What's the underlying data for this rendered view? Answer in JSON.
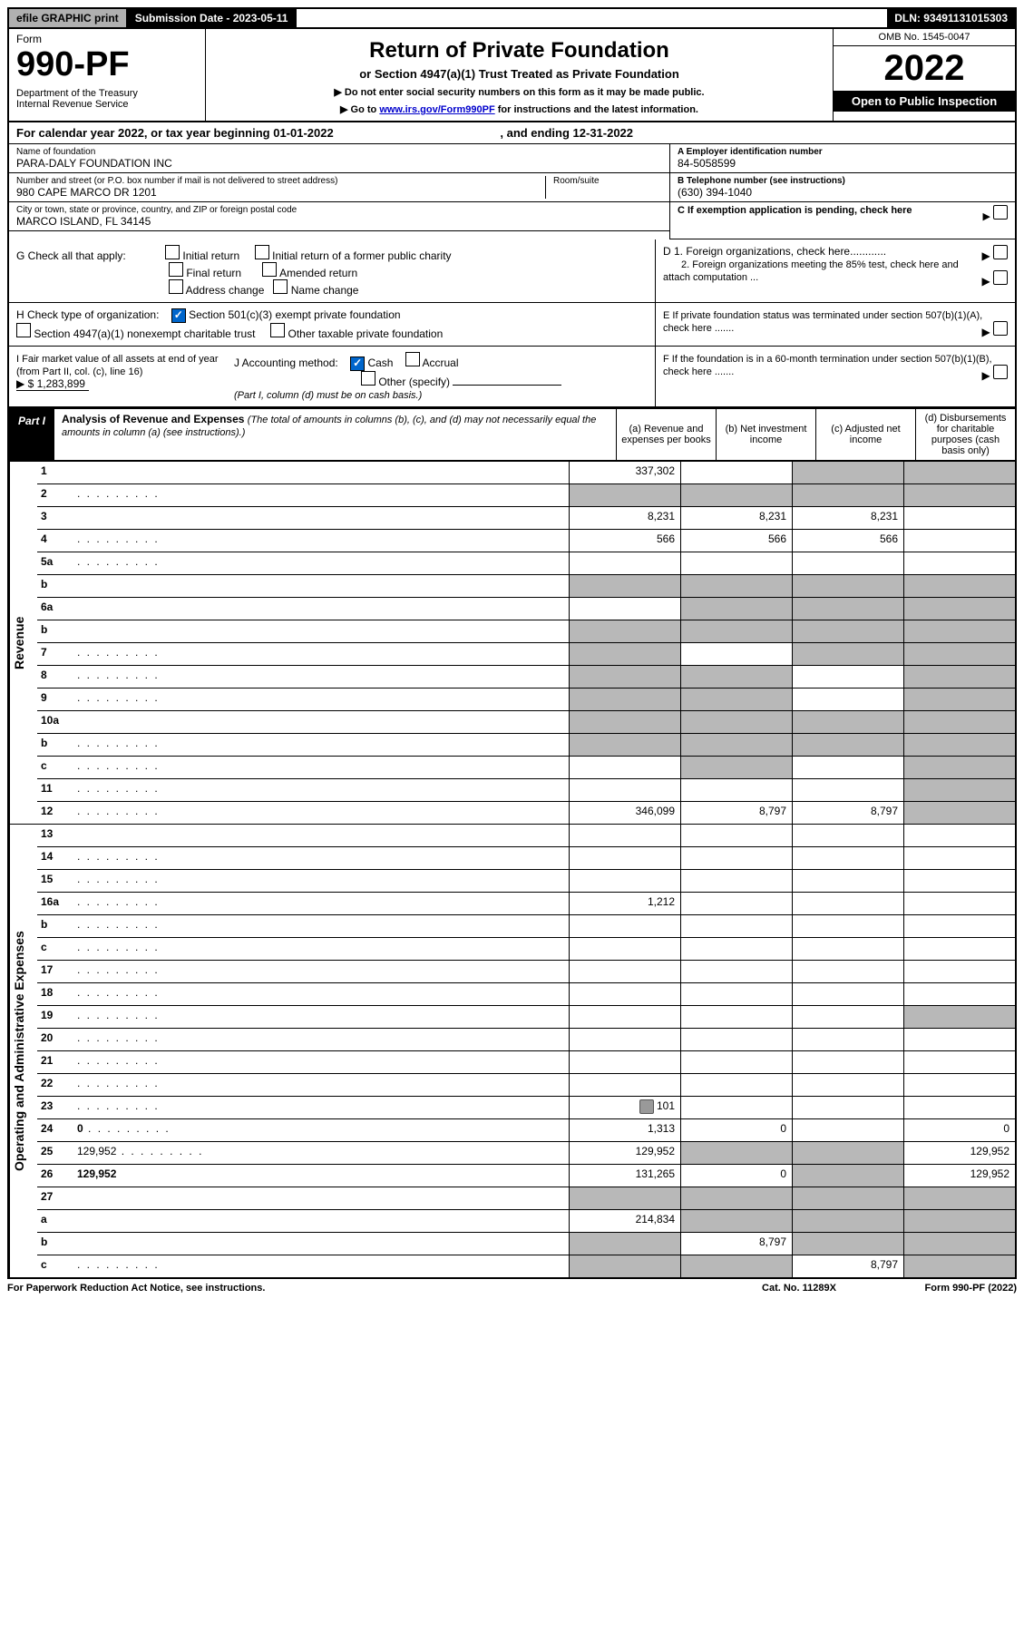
{
  "top": {
    "efile": "efile GRAPHIC print",
    "sub_date": "Submission Date - 2023-05-11",
    "dln": "DLN: 93491131015303"
  },
  "header": {
    "form_label": "Form",
    "form_num": "990-PF",
    "dept": "Department of the Treasury\nInternal Revenue Service",
    "title": "Return of Private Foundation",
    "subtitle": "or Section 4947(a)(1) Trust Treated as Private Foundation",
    "note1": "▶ Do not enter social security numbers on this form as it may be made public.",
    "note2_pre": "▶ Go to ",
    "note2_link": "www.irs.gov/Form990PF",
    "note2_post": " for instructions and the latest information.",
    "omb": "OMB No. 1545-0047",
    "year": "2022",
    "open": "Open to Public Inspection"
  },
  "cal": {
    "text": "For calendar year 2022, or tax year beginning 01-01-2022",
    "end": ", and ending 12-31-2022"
  },
  "info": {
    "name_lbl": "Name of foundation",
    "name": "PARA-DALY FOUNDATION INC",
    "addr_lbl": "Number and street (or P.O. box number if mail is not delivered to street address)",
    "addr": "980 CAPE MARCO DR 1201",
    "room_lbl": "Room/suite",
    "city_lbl": "City or town, state or province, country, and ZIP or foreign postal code",
    "city": "MARCO ISLAND, FL  34145",
    "ein_lbl": "A Employer identification number",
    "ein": "84-5058599",
    "tel_lbl": "B Telephone number (see instructions)",
    "tel": "(630) 394-1040",
    "c_lbl": "C If exemption application is pending, check here",
    "d1_lbl": "D 1. Foreign organizations, check here............",
    "d2_lbl": "2. Foreign organizations meeting the 85% test, check here and attach computation ...",
    "e_lbl": "E  If private foundation status was terminated under section 507(b)(1)(A), check here .......",
    "f_lbl": "F  If the foundation is in a 60-month termination under section 507(b)(1)(B), check here .......",
    "g_lbl": "G Check all that apply:",
    "g_opts": [
      "Initial return",
      "Initial return of a former public charity",
      "Final return",
      "Amended return",
      "Address change",
      "Name change"
    ],
    "h_lbl": "H Check type of organization:",
    "h_opts": [
      "Section 501(c)(3) exempt private foundation",
      "Section 4947(a)(1) nonexempt charitable trust",
      "Other taxable private foundation"
    ],
    "i_lbl": "I Fair market value of all assets at end of year (from Part II, col. (c), line 16)",
    "i_val": "▶ $  1,283,899",
    "j_lbl": "J Accounting method:",
    "j_opts": [
      "Cash",
      "Accrual",
      "Other (specify)"
    ],
    "j_note": "(Part I, column (d) must be on cash basis.)"
  },
  "part": {
    "label": "Part I",
    "title": "Analysis of Revenue and Expenses",
    "title_note": " (The total of amounts in columns (b), (c), and (d) may not necessarily equal the amounts in column (a) (see instructions).)",
    "col_a": "(a)  Revenue and expenses per books",
    "col_b": "(b)  Net investment income",
    "col_c": "(c)  Adjusted net income",
    "col_d": "(d)  Disbursements for charitable purposes (cash basis only)"
  },
  "sections": {
    "revenue": "Revenue",
    "expenses": "Operating and Administrative Expenses"
  },
  "rows": [
    {
      "n": "1",
      "d": "",
      "a": "337,302",
      "b": "",
      "c": "",
      "bs": "",
      "cs": "shade",
      "ds": "shade"
    },
    {
      "n": "2",
      "d": "",
      "a": "",
      "b": "",
      "c": "",
      "as": "shade",
      "bs": "shade",
      "cs": "shade",
      "ds": "shade",
      "dots": true
    },
    {
      "n": "3",
      "d": "",
      "a": "8,231",
      "b": "8,231",
      "c": "8,231"
    },
    {
      "n": "4",
      "d": "",
      "a": "566",
      "b": "566",
      "c": "566",
      "dots": true
    },
    {
      "n": "5a",
      "d": "",
      "a": "",
      "b": "",
      "c": "",
      "dots": true
    },
    {
      "n": "b",
      "d": "",
      "a": "",
      "b": "",
      "c": "",
      "as": "shade",
      "bs": "shade",
      "cs": "shade",
      "ds": "shade"
    },
    {
      "n": "6a",
      "d": "",
      "a": "",
      "b": "",
      "c": "",
      "bs": "shade",
      "cs": "shade",
      "ds": "shade"
    },
    {
      "n": "b",
      "d": "",
      "a": "",
      "b": "",
      "c": "",
      "as": "shade",
      "bs": "shade",
      "cs": "shade",
      "ds": "shade"
    },
    {
      "n": "7",
      "d": "",
      "a": "",
      "b": "",
      "c": "",
      "as": "shade",
      "cs": "shade",
      "ds": "shade",
      "dots": true
    },
    {
      "n": "8",
      "d": "",
      "a": "",
      "b": "",
      "c": "",
      "as": "shade",
      "bs": "shade",
      "ds": "shade",
      "dots": true
    },
    {
      "n": "9",
      "d": "",
      "a": "",
      "b": "",
      "c": "",
      "as": "shade",
      "bs": "shade",
      "ds": "shade",
      "dots": true
    },
    {
      "n": "10a",
      "d": "",
      "a": "",
      "b": "",
      "c": "",
      "as": "shade",
      "bs": "shade",
      "cs": "shade",
      "ds": "shade"
    },
    {
      "n": "b",
      "d": "",
      "a": "",
      "b": "",
      "c": "",
      "as": "shade",
      "bs": "shade",
      "cs": "shade",
      "ds": "shade",
      "dots": true
    },
    {
      "n": "c",
      "d": "",
      "a": "",
      "b": "",
      "c": "",
      "bs": "shade",
      "ds": "shade",
      "dots": true
    },
    {
      "n": "11",
      "d": "",
      "a": "",
      "b": "",
      "c": "",
      "ds": "shade",
      "dots": true
    },
    {
      "n": "12",
      "d": "",
      "a": "346,099",
      "b": "8,797",
      "c": "8,797",
      "ds": "shade",
      "bold": true,
      "dots": true
    }
  ],
  "rows2": [
    {
      "n": "13",
      "d": "",
      "a": "",
      "b": "",
      "c": ""
    },
    {
      "n": "14",
      "d": "",
      "a": "",
      "b": "",
      "c": "",
      "dots": true
    },
    {
      "n": "15",
      "d": "",
      "a": "",
      "b": "",
      "c": "",
      "dots": true
    },
    {
      "n": "16a",
      "d": "",
      "a": "1,212",
      "b": "",
      "c": "",
      "dots": true
    },
    {
      "n": "b",
      "d": "",
      "a": "",
      "b": "",
      "c": "",
      "dots": true
    },
    {
      "n": "c",
      "d": "",
      "a": "",
      "b": "",
      "c": "",
      "dots": true
    },
    {
      "n": "17",
      "d": "",
      "a": "",
      "b": "",
      "c": "",
      "dots": true
    },
    {
      "n": "18",
      "d": "",
      "a": "",
      "b": "",
      "c": "",
      "dots": true
    },
    {
      "n": "19",
      "d": "",
      "a": "",
      "b": "",
      "c": "",
      "ds": "shade",
      "dots": true
    },
    {
      "n": "20",
      "d": "",
      "a": "",
      "b": "",
      "c": "",
      "dots": true
    },
    {
      "n": "21",
      "d": "",
      "a": "",
      "b": "",
      "c": "",
      "dots": true
    },
    {
      "n": "22",
      "d": "",
      "a": "",
      "b": "",
      "c": "",
      "dots": true
    },
    {
      "n": "23",
      "d": "",
      "a": "101",
      "b": "",
      "c": "",
      "icon": true,
      "dots": true
    },
    {
      "n": "24",
      "d": "0",
      "a": "1,313",
      "b": "0",
      "c": "",
      "bold": true,
      "dots": true
    },
    {
      "n": "25",
      "d": "129,952",
      "a": "129,952",
      "b": "",
      "c": "",
      "bs": "shade",
      "cs": "shade",
      "dots": true
    },
    {
      "n": "26",
      "d": "129,952",
      "a": "131,265",
      "b": "0",
      "c": "",
      "bold": true,
      "cs": "shade"
    },
    {
      "n": "27",
      "d": "",
      "a": "",
      "b": "",
      "c": "",
      "as": "shade",
      "bs": "shade",
      "cs": "shade",
      "ds": "shade"
    },
    {
      "n": "a",
      "d": "",
      "a": "214,834",
      "b": "",
      "c": "",
      "bold": true,
      "bs": "shade",
      "cs": "shade",
      "ds": "shade"
    },
    {
      "n": "b",
      "d": "",
      "a": "",
      "b": "8,797",
      "c": "",
      "bold": true,
      "as": "shade",
      "cs": "shade",
      "ds": "shade"
    },
    {
      "n": "c",
      "d": "",
      "a": "",
      "b": "",
      "c": "8,797",
      "bold": true,
      "as": "shade",
      "bs": "shade",
      "ds": "shade",
      "dots": true
    }
  ],
  "footer": {
    "left": "For Paperwork Reduction Act Notice, see instructions.",
    "mid": "Cat. No. 11289X",
    "right": "Form 990-PF (2022)"
  }
}
